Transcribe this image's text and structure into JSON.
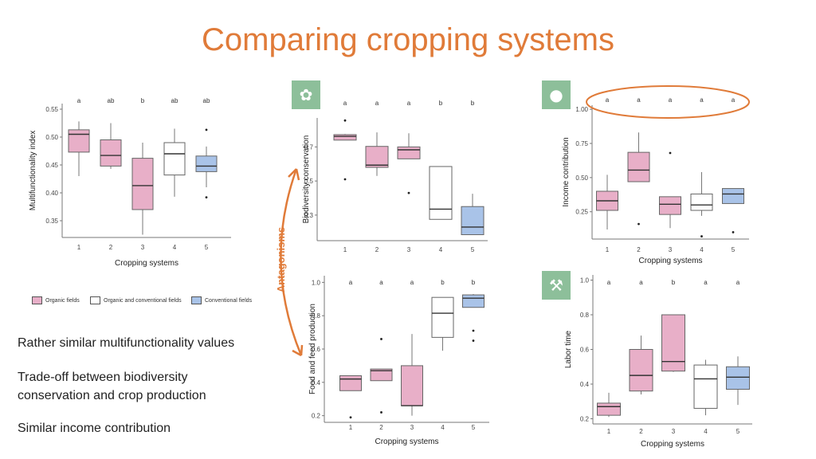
{
  "slide": {
    "title": "Comparing cropping systems",
    "notes": [
      "Rather similar multifunctionality values",
      "Trade-off between biodiversity conservation and crop production",
      "Similar income contribution"
    ],
    "antagonism_label": "Antagonisms",
    "legend": [
      {
        "label": "Organic fields",
        "color": "#e8afc8"
      },
      {
        "label": "Organic and conventional fields",
        "color": "#ffffff"
      },
      {
        "label": "Conventional fields",
        "color": "#a9c3e8"
      }
    ],
    "icons": [
      "biodiversity-icon",
      "piggy-bank-icon",
      "labor-icon"
    ],
    "accent_color": "#e07b39"
  },
  "chart_data": [
    {
      "type": "box",
      "id": "multifunctionality",
      "ylabel": "Multifunctionality index",
      "xlabel": "Cropping systems",
      "categories": [
        "1",
        "2",
        "3",
        "4",
        "5"
      ],
      "yticks": [
        "0.35",
        "0.40",
        "0.45",
        "0.50",
        "0.55"
      ],
      "ylim": [
        0.32,
        0.56
      ],
      "letters": [
        "a",
        "ab",
        "b",
        "ab",
        "ab"
      ],
      "boxes": [
        {
          "min": 0.43,
          "q1": 0.473,
          "median": 0.505,
          "q3": 0.513,
          "max": 0.528,
          "outliers": []
        },
        {
          "min": 0.443,
          "q1": 0.448,
          "median": 0.467,
          "q3": 0.495,
          "max": 0.525,
          "outliers": []
        },
        {
          "min": 0.325,
          "q1": 0.37,
          "median": 0.413,
          "q3": 0.462,
          "max": 0.49,
          "outliers": []
        },
        {
          "min": 0.393,
          "q1": 0.432,
          "median": 0.47,
          "q3": 0.49,
          "max": 0.515,
          "outliers": []
        },
        {
          "min": 0.41,
          "q1": 0.438,
          "median": 0.448,
          "q3": 0.466,
          "max": 0.483,
          "outliers": [
            0.513,
            0.392
          ]
        }
      ]
    },
    {
      "type": "box",
      "id": "biodiversity",
      "ylabel": "Biodiversity conservation",
      "xlabel": "",
      "categories": [
        "1",
        "2",
        "3",
        "4",
        "5"
      ],
      "yticks": [
        "0.3",
        "0.5",
        "0.7"
      ],
      "ylim": [
        0.15,
        0.87
      ],
      "letters": [
        "a",
        "a",
        "a",
        "b",
        "b"
      ],
      "boxes": [
        {
          "min": 0.74,
          "q1": 0.74,
          "median": 0.762,
          "q3": 0.772,
          "max": 0.776,
          "outliers": [
            0.855,
            0.51
          ]
        },
        {
          "min": 0.53,
          "q1": 0.58,
          "median": 0.593,
          "q3": 0.703,
          "max": 0.785,
          "outliers": []
        },
        {
          "min": 0.63,
          "q1": 0.63,
          "median": 0.683,
          "q3": 0.7,
          "max": 0.78,
          "outliers": [
            0.43
          ]
        },
        {
          "min": 0.275,
          "q1": 0.275,
          "median": 0.335,
          "q3": 0.585,
          "max": 0.585,
          "outliers": []
        },
        {
          "min": 0.185,
          "q1": 0.185,
          "median": 0.23,
          "q3": 0.35,
          "max": 0.425,
          "outliers": []
        }
      ]
    },
    {
      "type": "box",
      "id": "food-feed",
      "ylabel": "Food and feed production",
      "xlabel": "Cropping systems",
      "categories": [
        "1",
        "2",
        "3",
        "4",
        "5"
      ],
      "yticks": [
        "0.2",
        "0.4",
        "0.6",
        "0.8",
        "1.0"
      ],
      "ylim": [
        0.16,
        1.04
      ],
      "letters": [
        "a",
        "a",
        "a",
        "b",
        "b"
      ],
      "boxes": [
        {
          "min": 0.35,
          "q1": 0.35,
          "median": 0.42,
          "q3": 0.44,
          "max": 0.44,
          "outliers": [
            0.19
          ]
        },
        {
          "min": 0.41,
          "q1": 0.41,
          "median": 0.47,
          "q3": 0.48,
          "max": 0.48,
          "outliers": [
            0.66,
            0.22
          ]
        },
        {
          "min": 0.2,
          "q1": 0.26,
          "median": 0.26,
          "q3": 0.5,
          "max": 0.69,
          "outliers": []
        },
        {
          "min": 0.59,
          "q1": 0.67,
          "median": 0.815,
          "q3": 0.91,
          "max": 0.91,
          "outliers": []
        },
        {
          "min": 0.85,
          "q1": 0.85,
          "median": 0.905,
          "q3": 0.925,
          "max": 0.93,
          "outliers": [
            0.71,
            0.65
          ]
        }
      ]
    },
    {
      "type": "box",
      "id": "income",
      "ylabel": "Income contribution",
      "xlabel": "Cropping systems",
      "categories": [
        "1",
        "2",
        "3",
        "4",
        "5"
      ],
      "yticks": [
        "0.25",
        "0.50",
        "0.75",
        "1.00"
      ],
      "ylim": [
        0.05,
        1.03
      ],
      "letters": [
        "a",
        "a",
        "a",
        "a",
        "a"
      ],
      "boxes": [
        {
          "min": 0.12,
          "q1": 0.26,
          "median": 0.33,
          "q3": 0.4,
          "max": 0.52,
          "outliers": []
        },
        {
          "min": 0.47,
          "q1": 0.47,
          "median": 0.555,
          "q3": 0.685,
          "max": 0.83,
          "outliers": [
            0.16
          ]
        },
        {
          "min": 0.13,
          "q1": 0.23,
          "median": 0.305,
          "q3": 0.36,
          "max": 0.36,
          "outliers": [
            0.68
          ]
        },
        {
          "min": 0.22,
          "q1": 0.26,
          "median": 0.3,
          "q3": 0.38,
          "max": 0.54,
          "outliers": [
            0.07
          ]
        },
        {
          "min": 0.31,
          "q1": 0.31,
          "median": 0.38,
          "q3": 0.42,
          "max": 0.42,
          "outliers": [
            0.1
          ]
        }
      ]
    },
    {
      "type": "box",
      "id": "labor",
      "ylabel": "Labor time",
      "xlabel": "Cropping systems",
      "categories": [
        "1",
        "2",
        "3",
        "4",
        "5"
      ],
      "yticks": [
        "0.2",
        "0.4",
        "0.6",
        "0.8",
        "1.0"
      ],
      "ylim": [
        0.17,
        1.03
      ],
      "letters": [
        "a",
        "a",
        "b",
        "a",
        "a"
      ],
      "boxes": [
        {
          "min": 0.21,
          "q1": 0.22,
          "median": 0.27,
          "q3": 0.29,
          "max": 0.35,
          "outliers": []
        },
        {
          "min": 0.34,
          "q1": 0.36,
          "median": 0.45,
          "q3": 0.6,
          "max": 0.68,
          "outliers": []
        },
        {
          "min": 0.47,
          "q1": 0.475,
          "median": 0.53,
          "q3": 0.8,
          "max": 0.8,
          "outliers": []
        },
        {
          "min": 0.22,
          "q1": 0.26,
          "median": 0.43,
          "q3": 0.51,
          "max": 0.54,
          "outliers": []
        },
        {
          "min": 0.28,
          "q1": 0.37,
          "median": 0.44,
          "q3": 0.5,
          "max": 0.56,
          "outliers": []
        }
      ]
    }
  ]
}
